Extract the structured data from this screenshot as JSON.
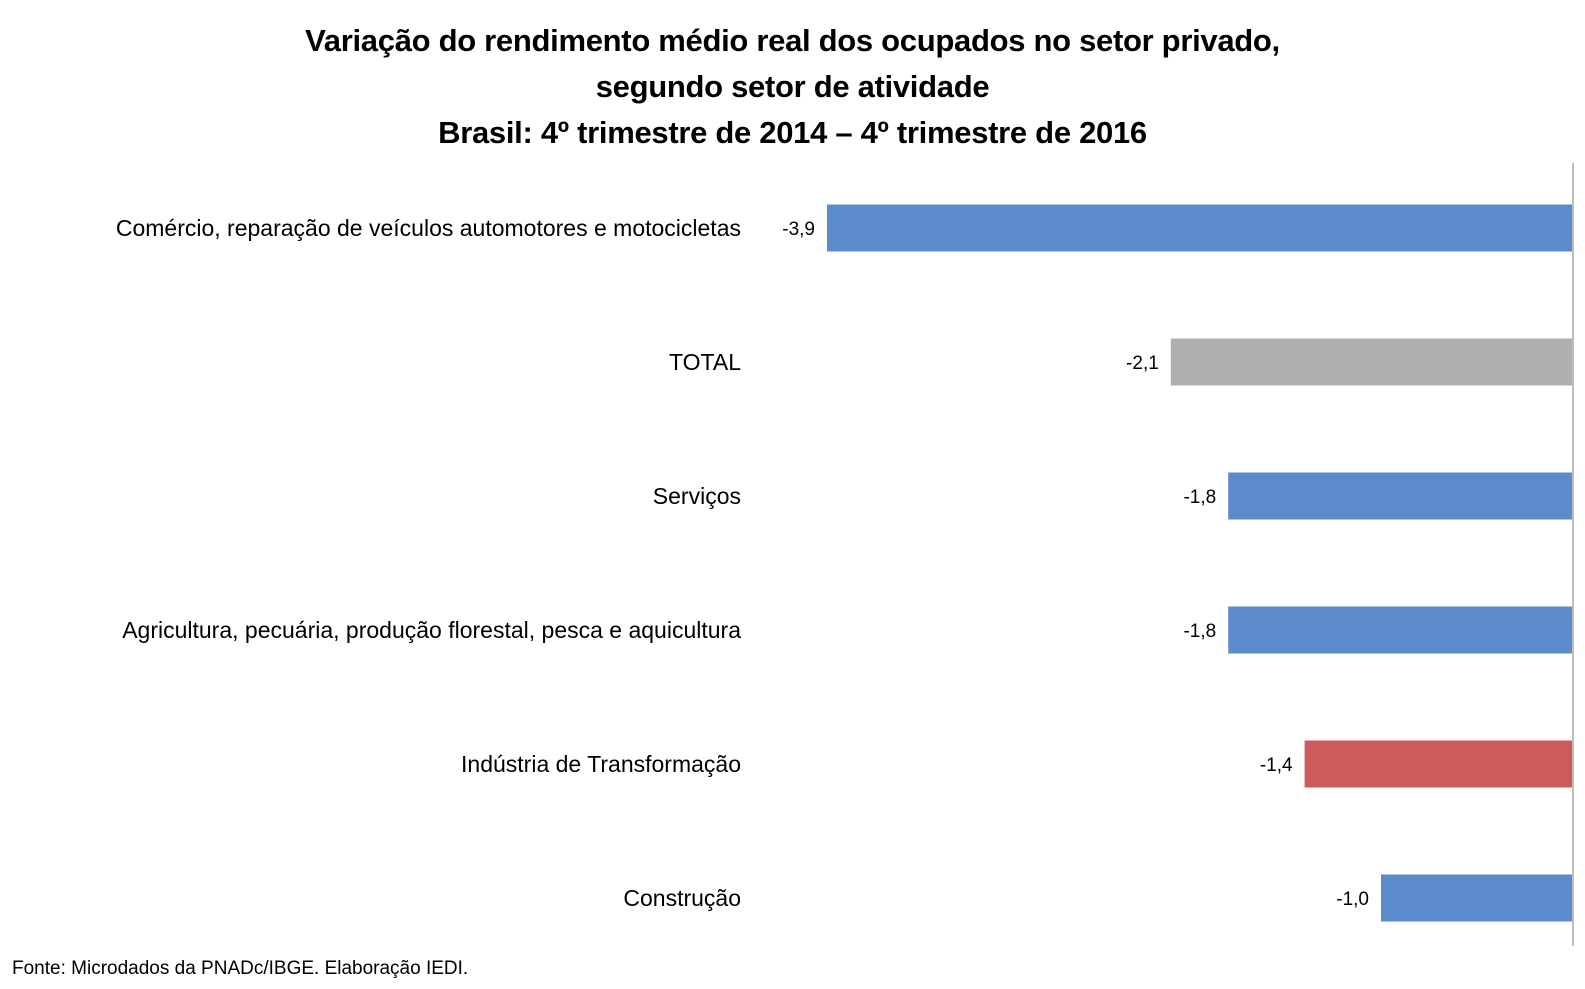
{
  "chart_data": {
    "type": "bar",
    "orientation": "horizontal",
    "title": [
      "Variação do rendimento médio real dos ocupados no setor privado,",
      "segundo setor de atividade",
      "Brasil: 4º trimestre de 2014 – 4º trimestre de 2016"
    ],
    "categories": [
      "Comércio, reparação de veículos automotores e motocicletas",
      "TOTAL",
      "Serviços",
      "Agricultura, pecuária, produção florestal, pesca e aquicultura",
      "Indústria de Transformação",
      "Construção"
    ],
    "values": [
      -3.9,
      -2.1,
      -1.8,
      -1.8,
      -1.4,
      -1.0
    ],
    "value_labels": [
      "-3,9",
      "-2,1",
      "-1,8",
      "-1,8",
      "-1,4",
      "-1,0"
    ],
    "bar_colors": [
      "#5B8BCB",
      "#AFAFAF",
      "#5B8BCB",
      "#5B8BCB",
      "#CD5B5A",
      "#5B8BCB"
    ],
    "xlim": [
      -3.9,
      0
    ],
    "axis_color": "#BFBFBF",
    "grid": false,
    "legend": "none",
    "source": "Fonte: Microdados da PNADc/IBGE. Elaboração IEDI."
  }
}
